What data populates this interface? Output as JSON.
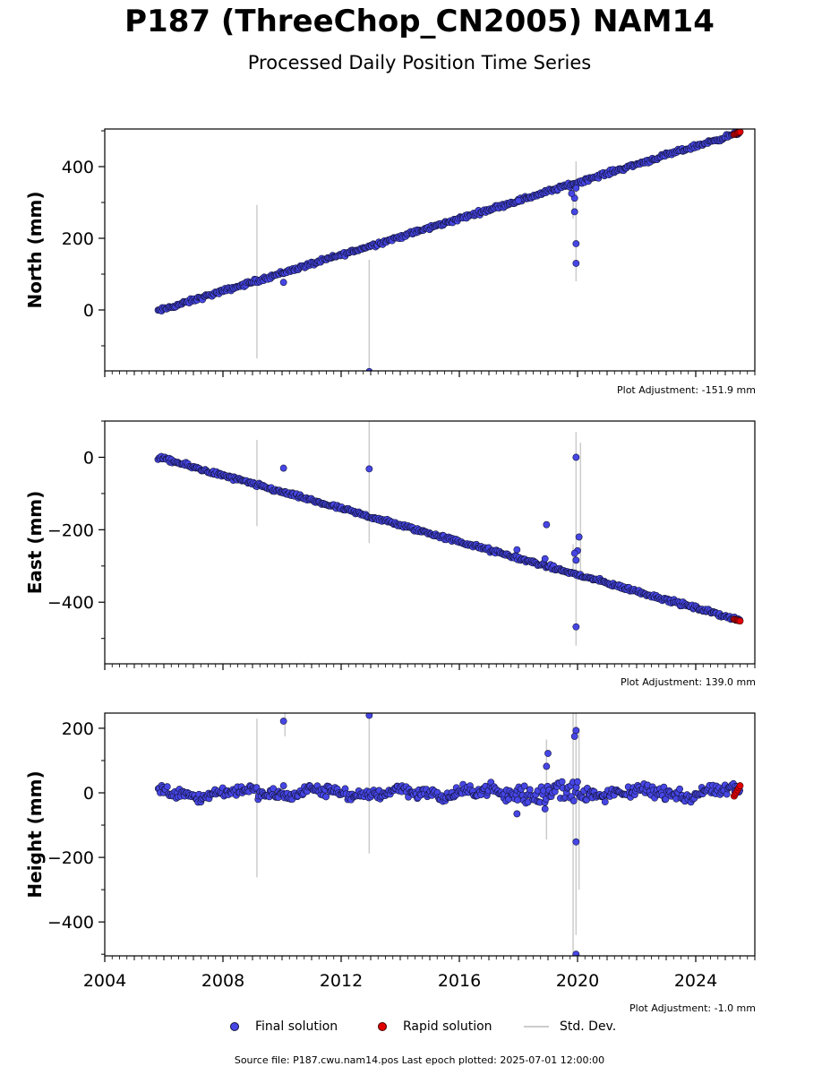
{
  "header": {
    "title": "P187 (ThreeChop_CN2005) NAM14",
    "subtitle": "Processed Daily Position Time Series"
  },
  "legend": {
    "final": "Final solution",
    "rapid": "Rapid solution",
    "stddev": "Std. Dev."
  },
  "footer": {
    "source": "Source file: P187.cwu.nam14.pos  Last epoch plotted: 2025-07-01 12:00:00"
  },
  "colors": {
    "final": "#4646e6",
    "final_edge": "#14143c",
    "rapid": "#e00000",
    "stddev": "#cccccc"
  },
  "chart_data": [
    {
      "type": "scatter",
      "ylabel": "North (mm)",
      "adjustment": "Plot Adjustment: -151.9 mm",
      "xlim": [
        2004.0,
        2026.0
      ],
      "ylim": [
        -170,
        505
      ],
      "yticks": [
        0,
        200,
        400
      ],
      "yminor_step": 100,
      "trend": {
        "x": [
          2005.8,
          2025.5
        ],
        "y": [
          -3,
          495
        ]
      },
      "noise": 4,
      "outliers": [
        {
          "x": 2010.05,
          "y": 77
        },
        {
          "x": 2012.95,
          "y": -172
        },
        {
          "x": 2019.95,
          "y": 130
        },
        {
          "x": 2019.95,
          "y": 185
        },
        {
          "x": 2019.9,
          "y": 274
        },
        {
          "x": 2019.9,
          "y": 312
        },
        {
          "x": 2019.95,
          "y": 340
        },
        {
          "x": 2018.0,
          "y": 305
        },
        {
          "x": 2019.8,
          "y": 325
        }
      ],
      "error_bars": [
        {
          "x": 2009.15,
          "y0": -135,
          "y1": 293
        },
        {
          "x": 2012.95,
          "y0": -172,
          "y1": 140
        },
        {
          "x": 2019.95,
          "y0": 80,
          "y1": 415
        },
        {
          "x": 2019.85,
          "y0": 255,
          "y1": 345
        }
      ],
      "rapid": {
        "x": [
          2025.3,
          2025.5
        ],
        "y": [
          490,
          497
        ]
      }
    },
    {
      "type": "scatter",
      "ylabel": "East (mm)",
      "adjustment": "Plot Adjustment: 139.0 mm",
      "xlim": [
        2004.0,
        2026.0
      ],
      "ylim": [
        -570,
        100
      ],
      "yticks": [
        -400,
        -200,
        0
      ],
      "yminor_step": 100,
      "trend": {
        "x": [
          2005.8,
          2025.5
        ],
        "y": [
          0,
          -450
        ]
      },
      "noise": 4,
      "outliers": [
        {
          "x": 2010.05,
          "y": -30
        },
        {
          "x": 2012.95,
          "y": -32
        },
        {
          "x": 2018.95,
          "y": -186
        },
        {
          "x": 2019.95,
          "y": 0
        },
        {
          "x": 2019.95,
          "y": -468
        },
        {
          "x": 2020.05,
          "y": -220
        },
        {
          "x": 2020.0,
          "y": -258
        },
        {
          "x": 2019.9,
          "y": -265
        },
        {
          "x": 2019.95,
          "y": -284
        },
        {
          "x": 2017.95,
          "y": -255
        },
        {
          "x": 2018.9,
          "y": -280
        }
      ],
      "error_bars": [
        {
          "x": 2009.15,
          "y0": -190,
          "y1": 48
        },
        {
          "x": 2012.95,
          "y0": -237,
          "y1": 100
        },
        {
          "x": 2019.95,
          "y0": -520,
          "y1": 70
        },
        {
          "x": 2020.1,
          "y0": -330,
          "y1": 40
        },
        {
          "x": 2019.85,
          "y0": -310,
          "y1": -240
        }
      ],
      "rapid": {
        "x": [
          2025.3,
          2025.5
        ],
        "y": [
          -447,
          -452
        ]
      }
    },
    {
      "type": "scatter",
      "ylabel": "Height (mm)",
      "adjustment": "Plot Adjustment: -1.0 mm",
      "xlim": [
        2004.0,
        2026.0
      ],
      "ylim": [
        -505,
        247
      ],
      "yticks": [
        -400,
        -200,
        0,
        200
      ],
      "yminor_step": 100,
      "xticks": [
        2004,
        2008,
        2012,
        2016,
        2020,
        2024
      ],
      "trend": {
        "x": [
          2005.8,
          2025.5
        ],
        "y": [
          0,
          0
        ]
      },
      "noise": 12,
      "noise_burst": {
        "x0": 2017.5,
        "x1": 2020.6,
        "amp": 25
      },
      "outliers": [
        {
          "x": 2010.05,
          "y": 222
        },
        {
          "x": 2012.95,
          "y": 240
        },
        {
          "x": 2019.95,
          "y": 193
        },
        {
          "x": 2019.9,
          "y": 175
        },
        {
          "x": 2019.0,
          "y": 122
        },
        {
          "x": 2018.95,
          "y": 82
        },
        {
          "x": 2019.95,
          "y": -152
        },
        {
          "x": 2019.95,
          "y": -500
        },
        {
          "x": 2017.95,
          "y": -65
        },
        {
          "x": 2018.9,
          "y": -50
        },
        {
          "x": 2010.05,
          "y": 22
        }
      ],
      "error_bars": [
        {
          "x": 2009.15,
          "y0": -262,
          "y1": 230
        },
        {
          "x": 2012.95,
          "y0": -188,
          "y1": 247
        },
        {
          "x": 2019.85,
          "y0": -505,
          "y1": 247
        },
        {
          "x": 2019.95,
          "y0": -440,
          "y1": 247
        },
        {
          "x": 2020.05,
          "y0": -300,
          "y1": 200
        },
        {
          "x": 2018.95,
          "y0": -145,
          "y1": 165
        },
        {
          "x": 2010.1,
          "y0": 175,
          "y1": 247
        }
      ],
      "rapid": {
        "x": [
          2025.3,
          2025.5
        ],
        "y": [
          -10,
          22
        ]
      }
    }
  ]
}
